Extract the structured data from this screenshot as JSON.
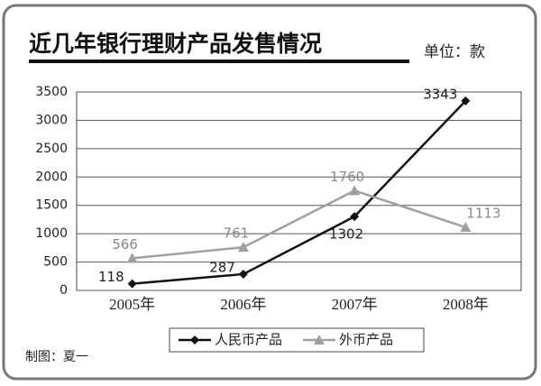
{
  "chart_data": {
    "type": "line",
    "title": "近几年银行理财产品发售情况",
    "unit": "单位：款",
    "source": "制图：夏一",
    "categories": [
      "2005年",
      "2006年",
      "2007年",
      "2008年"
    ],
    "series": [
      {
        "name": "人民币产品",
        "color": "#111111",
        "marker": "diamond",
        "values": [
          118,
          287,
          1302,
          3343
        ]
      },
      {
        "name": "外币产品",
        "color": "#a0a0a0",
        "marker": "triangle",
        "values": [
          566,
          761,
          1760,
          1113
        ]
      }
    ],
    "ylim": [
      0,
      3500
    ],
    "yticks": [
      0,
      500,
      1000,
      1500,
      2000,
      2500,
      3000,
      3500
    ],
    "grid": true,
    "legend": "bottom"
  }
}
